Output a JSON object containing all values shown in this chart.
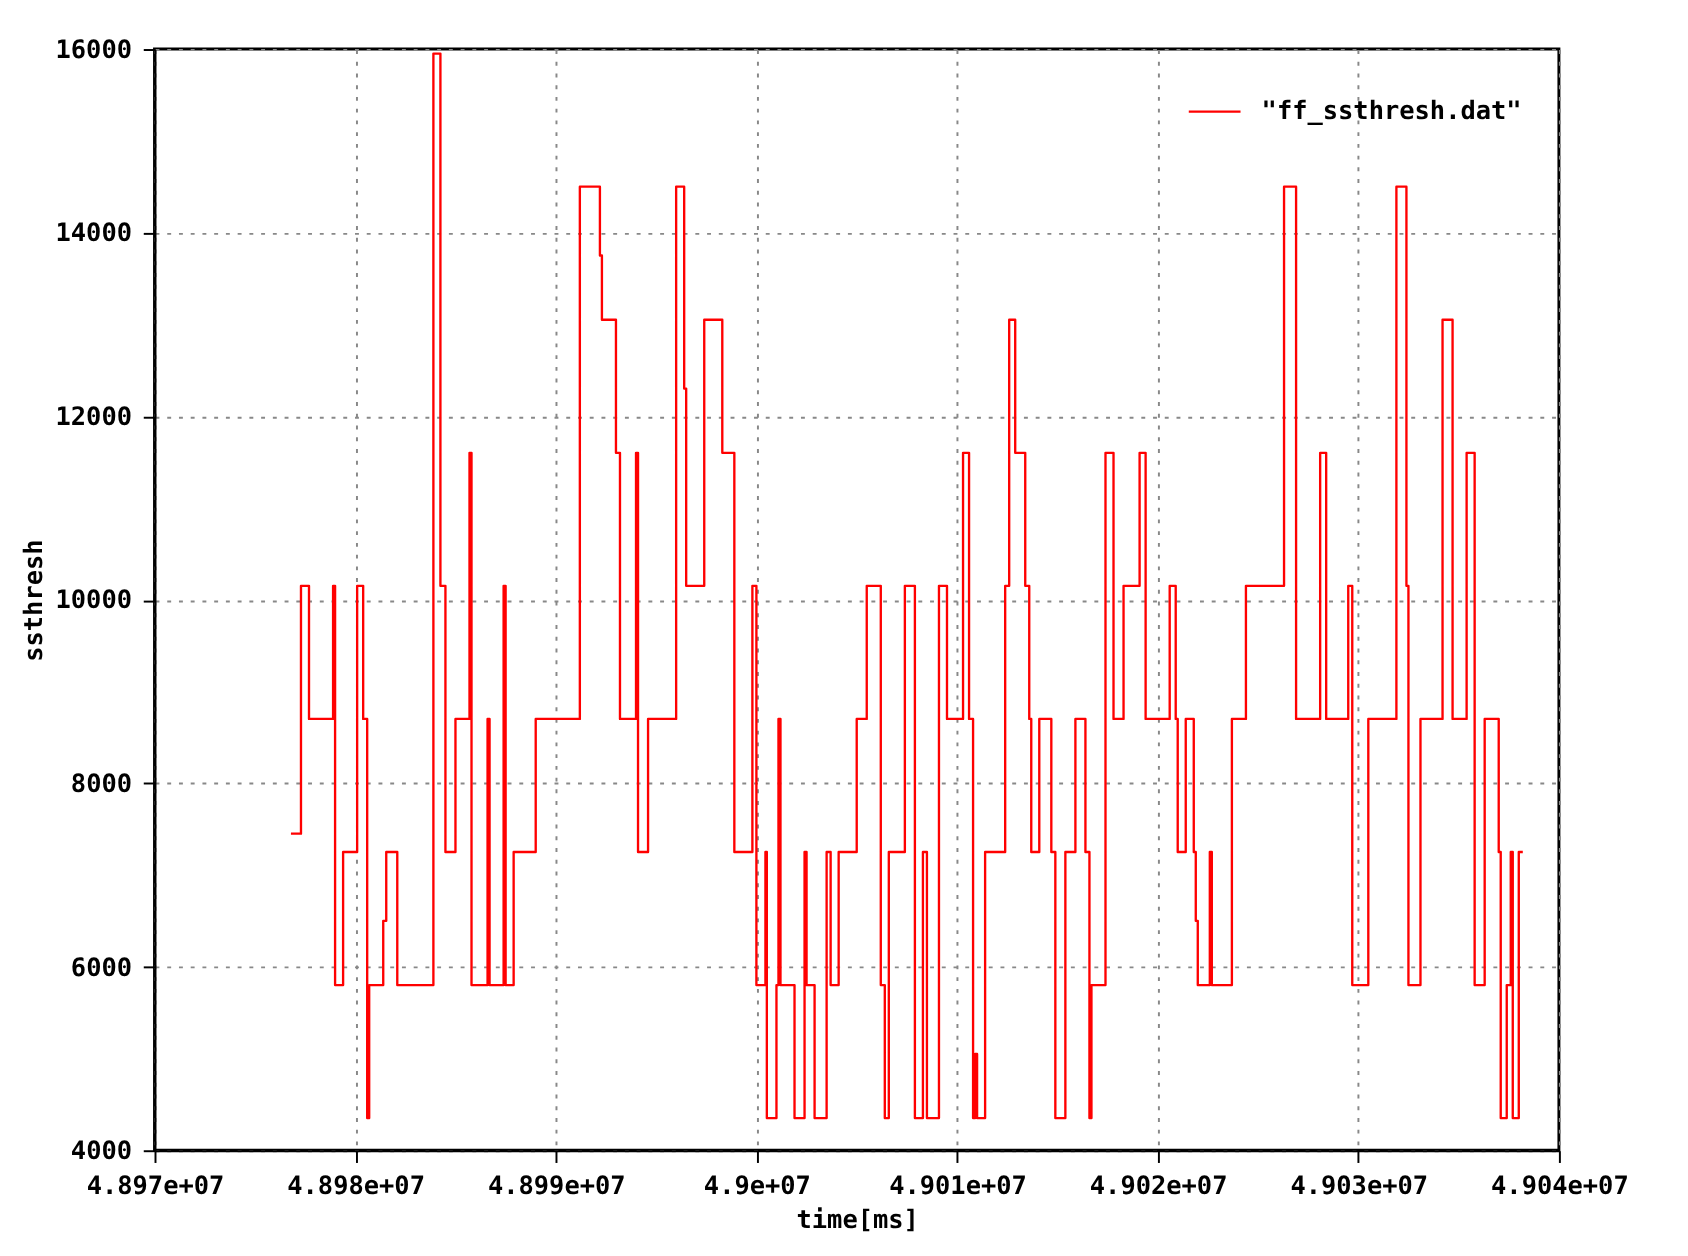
{
  "chart_data": {
    "type": "step",
    "xlabel": "time[ms]",
    "ylabel": "ssthresh",
    "xlim": [
      48970000,
      49040000
    ],
    "ylim": [
      4000,
      16000
    ],
    "xticks": [
      {
        "value": 48970000,
        "label": "4.897e+07"
      },
      {
        "value": 48980000,
        "label": "4.898e+07"
      },
      {
        "value": 48990000,
        "label": "4.899e+07"
      },
      {
        "value": 49000000,
        "label": "4.9e+07"
      },
      {
        "value": 49010000,
        "label": "4.901e+07"
      },
      {
        "value": 49020000,
        "label": "4.902e+07"
      },
      {
        "value": 49030000,
        "label": "4.903e+07"
      },
      {
        "value": 49040000,
        "label": "4.904e+07"
      }
    ],
    "yticks": [
      4000,
      6000,
      8000,
      10000,
      12000,
      14000,
      16000
    ],
    "grid": true,
    "legend": "top right",
    "line_style": "solid",
    "series": [
      {
        "name": "\"ff_ssthresh.dat\"",
        "color": "#ff0000",
        "x": [
          48976800,
          48977300,
          48977700,
          48978900,
          48979000,
          48979400,
          48980100,
          48980400,
          48980600,
          48980700,
          48981400,
          48981550,
          48982100,
          48983900,
          48984250,
          48984500,
          48985000,
          48985700,
          48985800,
          48986600,
          48986700,
          48987400,
          48987500,
          48987900,
          48989000,
          48991200,
          48992200,
          48992300,
          48993000,
          48993200,
          48994000,
          48994100,
          48994600,
          48996000,
          48996400,
          48996500,
          48997400,
          48998300,
          48998900,
          48999800,
          49000000,
          49000450,
          49000520,
          49001000,
          49001100,
          49001200,
          49001900,
          49002400,
          49002500,
          49002900,
          49003500,
          49003700,
          49004100,
          49005000,
          49005500,
          49006200,
          49006400,
          49006600,
          49007400,
          49007900,
          49008300,
          49008500,
          49009100,
          49009500,
          49010300,
          49010600,
          49010800,
          49010900,
          49011000,
          49011400,
          49012400,
          49012600,
          49012900,
          49013400,
          49013600,
          49013700,
          49014100,
          49014700,
          49014900,
          49015400,
          49015900,
          49016400,
          49016600,
          49016700,
          49017400,
          49017800,
          49018300,
          49019100,
          49019400,
          49020600,
          49020900,
          49021000,
          49021400,
          49021800,
          49021900,
          49022000,
          49022600,
          49022700,
          49023700,
          49024400,
          49026300,
          49026900,
          49028100,
          49028400,
          49029500,
          49029700,
          49030500,
          49031900,
          49032400,
          49032500,
          49033100,
          49034200,
          49034700,
          49035400,
          49035800,
          49036300,
          49037000,
          49037100,
          49037400,
          49037600,
          49037700,
          49038000,
          49038200
        ],
        "values": [
          7450,
          10150,
          8700,
          10150,
          5800,
          7250,
          10150,
          8700,
          4350,
          5800,
          6500,
          7250,
          5800,
          15950,
          10150,
          7250,
          8700,
          11600,
          5800,
          8700,
          5800,
          10150,
          5800,
          7250,
          8700,
          14500,
          13750,
          13050,
          11600,
          8700,
          11600,
          7250,
          8700,
          14500,
          12300,
          10150,
          13050,
          11600,
          7250,
          10150,
          5800,
          7250,
          4350,
          5800,
          8700,
          5800,
          4350,
          7250,
          5800,
          4350,
          7250,
          5800,
          7250,
          8700,
          10150,
          5800,
          4350,
          7250,
          10150,
          4350,
          7250,
          4350,
          10150,
          8700,
          11600,
          8700,
          4350,
          5050,
          4350,
          7250,
          10150,
          13050,
          11600,
          10150,
          8700,
          7250,
          8700,
          7250,
          4350,
          7250,
          8700,
          7250,
          4350,
          5800,
          11600,
          8700,
          10150,
          11600,
          8700,
          10150,
          8700,
          7250,
          8700,
          7250,
          6500,
          5800,
          7250,
          5800,
          8700,
          10150,
          14500,
          8700,
          11600,
          8700,
          10150,
          5800,
          8700,
          14500,
          10150,
          5800,
          8700,
          13050,
          8700,
          11600,
          5800,
          8700,
          7250,
          4350,
          5800,
          7250,
          4350,
          7250,
          7250
        ]
      }
    ]
  }
}
